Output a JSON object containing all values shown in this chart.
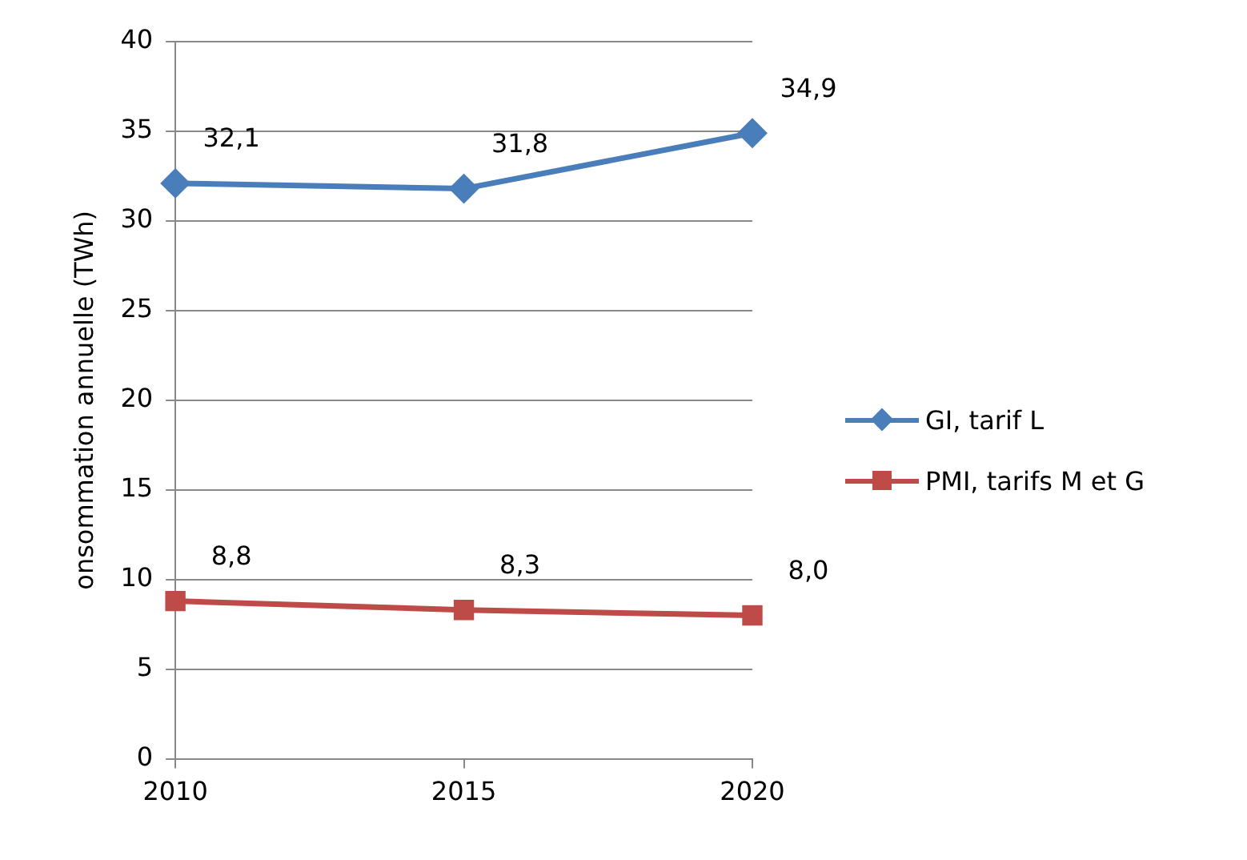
{
  "chart_data": {
    "type": "line",
    "ylabel": "onsommation annuelle (TWh)",
    "categories": [
      "2010",
      "2015",
      "2020"
    ],
    "series": [
      {
        "name": "GI, tarif L",
        "color": "#4a7ebb",
        "values": [
          32.1,
          31.8,
          34.9
        ],
        "marker": "diamond",
        "value_labels": [
          "32,1",
          "31,8",
          "34,9"
        ]
      },
      {
        "name": "PMI, tarifs M et G",
        "color": "#be4b48",
        "values": [
          8.8,
          8.3,
          8.0
        ],
        "marker": "square",
        "value_labels": [
          "8,8",
          "8,3",
          "8,0"
        ]
      }
    ],
    "ylim": [
      0,
      40
    ],
    "yticks": [
      0,
      5,
      10,
      15,
      20,
      25,
      30,
      35,
      40
    ],
    "grid": "y",
    "legend": "right",
    "line_style": "solid"
  }
}
